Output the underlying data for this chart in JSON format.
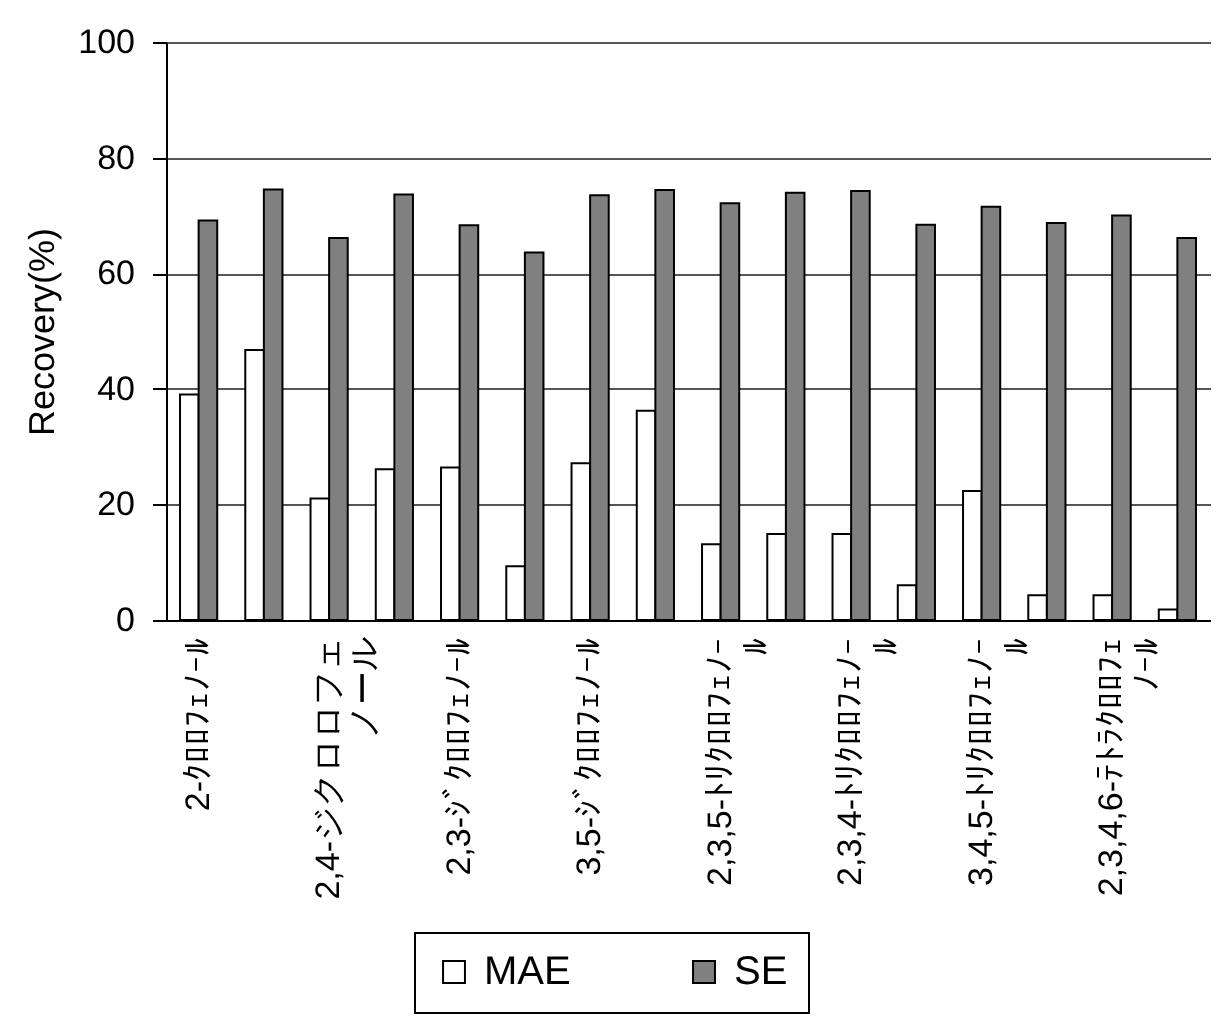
{
  "chart_data": {
    "type": "bar",
    "ylabel": "Recovery(%)",
    "categories": [
      "2-ｸﾛﾛﾌｪﾉｰﾙ",
      null,
      "2,4-ジクロロフェノール",
      null,
      "2,3-ｼﾞｸﾛﾛﾌｪﾉｰﾙ",
      null,
      "3,5-ｼﾞｸﾛﾛﾌｪﾉｰﾙ",
      null,
      "2,3,5-ﾄﾘｸﾛﾛﾌｪﾉｰﾙ",
      null,
      "2,3,4-ﾄﾘｸﾛﾛﾌｪﾉｰﾙ",
      null,
      "3,4,5-ﾄﾘｸﾛﾛﾌｪﾉｰﾙ",
      null,
      "2,3,4,6-ﾃﾄﾗｸﾛﾛﾌｪﾉｰﾙ",
      null
    ],
    "series": [
      {
        "name": "MAE",
        "color": "#ffffff",
        "values": [
          39.0,
          46.7,
          21.0,
          26.1,
          26.4,
          9.3,
          27.1,
          36.2,
          13.1,
          14.9,
          14.9,
          6.0,
          22.3,
          4.3,
          4.3,
          1.8
        ]
      },
      {
        "name": "SE",
        "color": "#808080",
        "values": [
          69.1,
          74.5,
          66.1,
          73.6,
          68.3,
          63.6,
          73.5,
          74.4,
          72.1,
          73.9,
          74.2,
          68.4,
          71.5,
          68.7,
          70.0,
          66.1
        ]
      }
    ],
    "ylim": [
      0,
      100
    ],
    "yticks": [
      0,
      20,
      40,
      60,
      80,
      100
    ],
    "grid": "y",
    "legend": "bottom"
  }
}
